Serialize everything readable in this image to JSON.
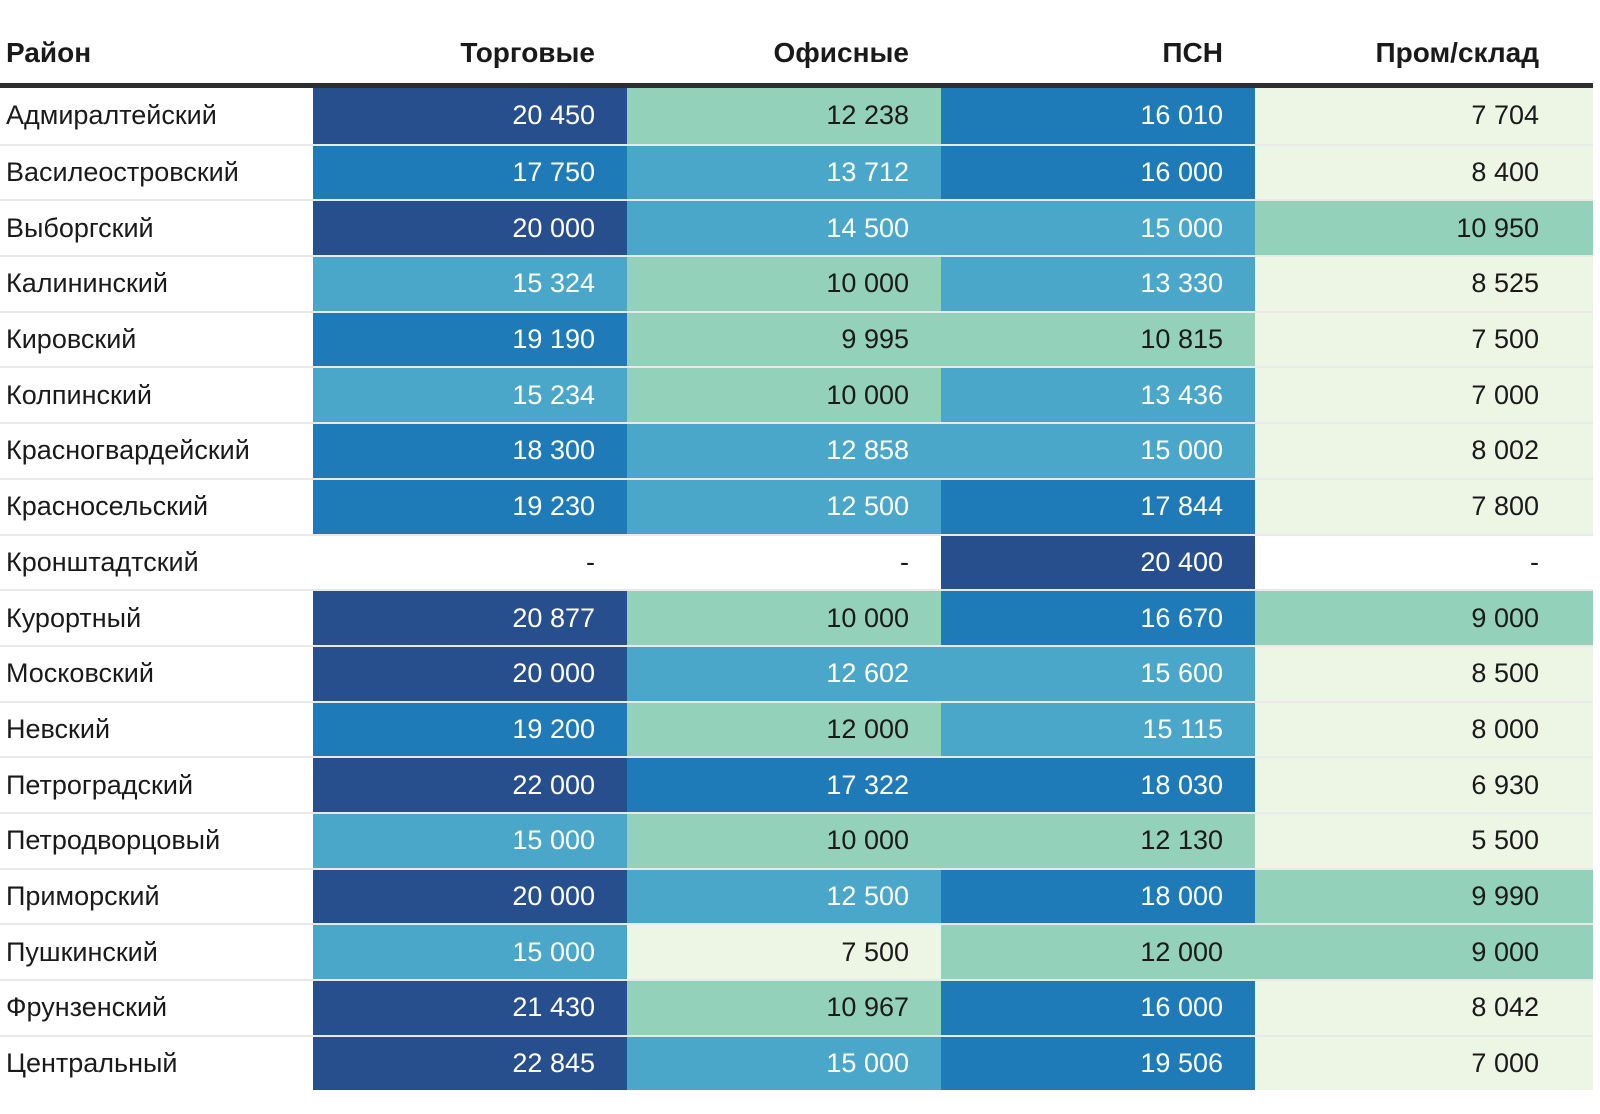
{
  "table": {
    "columns": [
      {
        "label": "Район"
      },
      {
        "label": "Торговые"
      },
      {
        "label": "Офисные"
      },
      {
        "label": "ПСН"
      },
      {
        "label": "Пром/склад"
      }
    ],
    "missing_placeholder": "-",
    "colors": {
      "header_rule": "#2e2e2e",
      "row_separator": "#e9e9e9",
      "text_dark": "#1a1a1a",
      "text_light": "#ffffff",
      "bins": {
        "b5": {
          "bg": "#274e8d",
          "fg": "#ffffff"
        },
        "b4": {
          "bg": "#1f7ab8",
          "fg": "#ffffff"
        },
        "b3": {
          "bg": "#4aa7ca",
          "fg": "#ffffff"
        },
        "b2": {
          "bg": "#94d1ba",
          "fg": "#1a1a1a"
        },
        "b1": {
          "bg": "#edf6e5",
          "fg": "#1a1a1a"
        },
        "none": {
          "bg": "#ffffff",
          "fg": "#1a1a1a"
        }
      }
    },
    "rows": [
      {
        "district": "Адмиралтейский",
        "values": [
          "20 450",
          "12 238",
          "16 010",
          "7 704"
        ],
        "bins": [
          "b5",
          "b2",
          "b4",
          "b1"
        ]
      },
      {
        "district": "Василеостровский",
        "values": [
          "17 750",
          "13 712",
          "16 000",
          "8 400"
        ],
        "bins": [
          "b4",
          "b3",
          "b4",
          "b1"
        ]
      },
      {
        "district": "Выборгский",
        "values": [
          "20 000",
          "14 500",
          "15 000",
          "10 950"
        ],
        "bins": [
          "b5",
          "b3",
          "b3",
          "b2"
        ]
      },
      {
        "district": "Калининский",
        "values": [
          "15 324",
          "10 000",
          "13 330",
          "8 525"
        ],
        "bins": [
          "b3",
          "b2",
          "b3",
          "b1"
        ]
      },
      {
        "district": "Кировский",
        "values": [
          "19 190",
          "9 995",
          "10 815",
          "7 500"
        ],
        "bins": [
          "b4",
          "b2",
          "b2",
          "b1"
        ]
      },
      {
        "district": "Колпинский",
        "values": [
          "15 234",
          "10 000",
          "13 436",
          "7 000"
        ],
        "bins": [
          "b3",
          "b2",
          "b3",
          "b1"
        ]
      },
      {
        "district": "Красногвардейский",
        "values": [
          "18 300",
          "12 858",
          "15 000",
          "8 002"
        ],
        "bins": [
          "b4",
          "b3",
          "b3",
          "b1"
        ]
      },
      {
        "district": "Красносельский",
        "values": [
          "19 230",
          "12 500",
          "17 844",
          "7 800"
        ],
        "bins": [
          "b4",
          "b3",
          "b4",
          "b1"
        ]
      },
      {
        "district": "Кронштадтский",
        "values": [
          "-",
          "-",
          "20 400",
          "-"
        ],
        "bins": [
          "none",
          "none",
          "b5",
          "none"
        ]
      },
      {
        "district": "Курортный",
        "values": [
          "20 877",
          "10 000",
          "16 670",
          "9 000"
        ],
        "bins": [
          "b5",
          "b2",
          "b4",
          "b2"
        ]
      },
      {
        "district": "Московский",
        "values": [
          "20 000",
          "12 602",
          "15 600",
          "8 500"
        ],
        "bins": [
          "b5",
          "b3",
          "b3",
          "b1"
        ]
      },
      {
        "district": "Невский",
        "values": [
          "19 200",
          "12 000",
          "15 115",
          "8 000"
        ],
        "bins": [
          "b4",
          "b2",
          "b3",
          "b1"
        ]
      },
      {
        "district": "Петроградский",
        "values": [
          "22 000",
          "17 322",
          "18 030",
          "6 930"
        ],
        "bins": [
          "b5",
          "b4",
          "b4",
          "b1"
        ]
      },
      {
        "district": "Петродворцовый",
        "values": [
          "15 000",
          "10 000",
          "12 130",
          "5 500"
        ],
        "bins": [
          "b3",
          "b2",
          "b2",
          "b1"
        ]
      },
      {
        "district": "Приморский",
        "values": [
          "20 000",
          "12 500",
          "18 000",
          "9 990"
        ],
        "bins": [
          "b5",
          "b3",
          "b4",
          "b2"
        ]
      },
      {
        "district": "Пушкинский",
        "values": [
          "15 000",
          "7 500",
          "12 000",
          "9 000"
        ],
        "bins": [
          "b3",
          "b1",
          "b2",
          "b2"
        ]
      },
      {
        "district": "Фрунзенский",
        "values": [
          "21 430",
          "10 967",
          "16 000",
          "8 042"
        ],
        "bins": [
          "b5",
          "b2",
          "b4",
          "b1"
        ]
      },
      {
        "district": "Центральный",
        "values": [
          "22 845",
          "15 000",
          "19 506",
          "7 000"
        ],
        "bins": [
          "b5",
          "b3",
          "b4",
          "b1"
        ]
      }
    ]
  },
  "chart_data": {
    "type": "heatmap",
    "title": "",
    "row_label_column": "Район",
    "columns": [
      "Торговые",
      "Офисные",
      "ПСН",
      "Пром/склад"
    ],
    "rows": [
      "Адмиралтейский",
      "Василеостровский",
      "Выборгский",
      "Калининский",
      "Кировский",
      "Колпинский",
      "Красногвардейский",
      "Красносельский",
      "Кронштадтский",
      "Курортный",
      "Московский",
      "Невский",
      "Петроградский",
      "Петродворцовый",
      "Приморский",
      "Пушкинский",
      "Фрунзенский",
      "Центральный"
    ],
    "values": [
      [
        20450,
        12238,
        16010,
        7704
      ],
      [
        17750,
        13712,
        16000,
        8400
      ],
      [
        20000,
        14500,
        15000,
        10950
      ],
      [
        15324,
        10000,
        13330,
        8525
      ],
      [
        19190,
        9995,
        10815,
        7500
      ],
      [
        15234,
        10000,
        13436,
        7000
      ],
      [
        18300,
        12858,
        15000,
        8002
      ],
      [
        19230,
        12500,
        17844,
        7800
      ],
      [
        null,
        null,
        20400,
        null
      ],
      [
        20877,
        10000,
        16670,
        9000
      ],
      [
        20000,
        12602,
        15600,
        8500
      ],
      [
        19200,
        12000,
        15115,
        8000
      ],
      [
        22000,
        17322,
        18030,
        6930
      ],
      [
        15000,
        10000,
        12130,
        5500
      ],
      [
        20000,
        12500,
        18000,
        9990
      ],
      [
        15000,
        7500,
        12000,
        9000
      ],
      [
        21430,
        10967,
        16000,
        8042
      ],
      [
        22845,
        15000,
        19506,
        7000
      ]
    ],
    "colormap": "green-to-blue, low values light green (#edf6e5) to high values dark navy (#274e8d), 5 discrete bins",
    "missing_value_marker": "-",
    "legend": "none",
    "grid": "thin light row separators"
  }
}
